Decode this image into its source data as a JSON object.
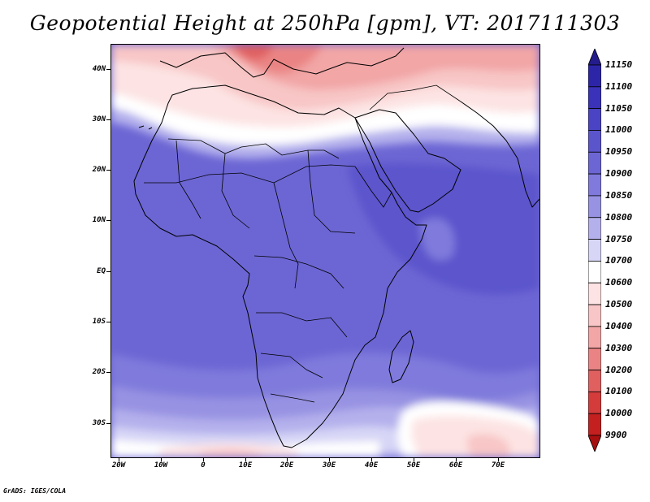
{
  "title": "Geopotential Height at 250hPa [gpm], VT: 2017111303",
  "credit": "GrADS: IGES/COLA",
  "lat_labels": [
    "40N",
    "30N",
    "20N",
    "10N",
    "EQ",
    "10S",
    "20S",
    "30S"
  ],
  "lon_labels": [
    "20W",
    "10W",
    "0",
    "10E",
    "20E",
    "30E",
    "40E",
    "50E",
    "60E",
    "70E"
  ],
  "colorbar": {
    "labels": [
      "11150",
      "11100",
      "11050",
      "11000",
      "10950",
      "10900",
      "10850",
      "10800",
      "10750",
      "10700",
      "10600",
      "10500",
      "10400",
      "10300",
      "10200",
      "10100",
      "10000",
      "9900"
    ],
    "colors": [
      "#241c8c",
      "#2d25a8",
      "#3a32b8",
      "#4a44c4",
      "#5b55cc",
      "#6c66d4",
      "#7f7adc",
      "#9792e2",
      "#b4b0ec",
      "#d7d6f6",
      "#ffffff",
      "#fde3e3",
      "#f8c6c6",
      "#f2a6a6",
      "#ea8484",
      "#e06060",
      "#d43c3c",
      "#c42020",
      "#a81010"
    ]
  },
  "chart_data": {
    "type": "heatmap",
    "title": "Geopotential Height at 250hPa [gpm], VT: 2017111303",
    "variable": "Geopotential Height at 250hPa",
    "units": "gpm",
    "valid_time": "2017111303",
    "lon_range": [
      -22,
      80
    ],
    "lat_range": [
      -37,
      45
    ],
    "levels": [
      9900,
      10000,
      10100,
      10200,
      10300,
      10400,
      10500,
      10600,
      10700,
      10750,
      10800,
      10850,
      10900,
      10950,
      11000,
      11050,
      11100,
      11150
    ],
    "grid": false
  }
}
